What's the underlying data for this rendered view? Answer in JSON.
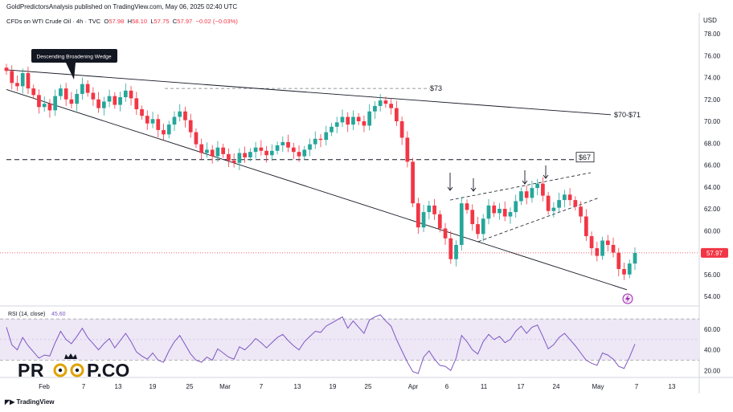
{
  "header": {
    "publisher": "GoldPredictorsAnalysis published on TradingView.com, May 06, 2025 02:40 UTC",
    "symbol": "CFDs on WTI Crude Oil · 4h · TVC",
    "open_label": "O",
    "open": "57.98",
    "high_label": "H",
    "high": "58.10",
    "low_label": "L",
    "low": "57.75",
    "close_label": "C",
    "close": "57.97",
    "change": "−0.02 (−0.03%)"
  },
  "currency": "USD",
  "watermark": "PR  P.CO",
  "tv_logo": "TradingView",
  "annotations": {
    "pattern_label": "Descending Broadening Wedge",
    "level_73": "$73",
    "level_70_71": "$70-$71",
    "level_67": "$67"
  },
  "colors": {
    "up": "#26a69a",
    "down": "#f23645",
    "rsi": "#7e57c2",
    "rsi_band": "#ede7f6",
    "price_tag": "#f23645"
  },
  "chart_data": [
    {
      "type": "candlestick",
      "title": "CFDs on WTI Crude Oil · 4h · TVC",
      "ylabel": "USD",
      "ylim": [
        53,
        79
      ],
      "y_ticks": [
        "78.00",
        "76.00",
        "74.00",
        "72.00",
        "70.00",
        "68.00",
        "66.00",
        "64.00",
        "62.00",
        "60.00",
        "58.00",
        "56.00",
        "54.00"
      ],
      "x_ticks": [
        "Feb",
        "7",
        "13",
        "19",
        "25",
        "Mar",
        "7",
        "13",
        "19",
        "25",
        "Apr",
        "6",
        "11",
        "17",
        "24",
        "May",
        "7",
        "13"
      ],
      "last_price": 57.97,
      "closes": [
        74.6,
        73.5,
        73.2,
        74.4,
        73.0,
        72.4,
        71.3,
        71.6,
        71.0,
        72.3,
        73.0,
        72.0,
        71.6,
        72.5,
        73.4,
        72.6,
        72.0,
        71.2,
        71.8,
        72.3,
        71.5,
        72.2,
        72.8,
        72.1,
        71.1,
        70.5,
        69.8,
        70.2,
        69.2,
        68.8,
        69.7,
        70.4,
        70.9,
        70.1,
        69.0,
        67.9,
        67.1,
        67.4,
        66.8,
        67.6,
        67.0,
        66.4,
        66.2,
        67.1,
        66.7,
        67.2,
        67.6,
        67.3,
        66.9,
        67.3,
        67.8,
        68.1,
        67.6,
        67.2,
        66.8,
        67.4,
        67.9,
        68.4,
        68.3,
        69.0,
        69.5,
        69.9,
        70.4,
        69.7,
        70.4,
        70.0,
        69.6,
        70.9,
        71.4,
        71.9,
        71.6,
        71.2,
        70.0,
        68.5,
        66.3,
        62.5,
        60.3,
        61.7,
        62.3,
        61.5,
        60.2,
        59.3,
        57.4,
        58.7,
        62.5,
        61.9,
        60.6,
        59.7,
        61.1,
        62.3,
        61.6,
        62.0,
        61.3,
        61.7,
        62.7,
        63.6,
        63.0,
        63.9,
        64.3,
        63.2,
        61.8,
        62.1,
        62.8,
        63.3,
        62.8,
        62.2,
        61.3,
        59.5,
        58.4,
        57.7,
        59.1,
        58.7,
        58.0,
        56.5,
        56.0,
        57.0,
        57.97
      ],
      "levels": [
        {
          "label": "$73",
          "value": 73.0
        },
        {
          "label": "$67",
          "value": 66.5
        },
        {
          "label": "$70-$71",
          "value": 70.6
        }
      ]
    },
    {
      "type": "line",
      "title": "RSI (14, close)",
      "value_label": "45.60",
      "y_ticks": [
        "60.00",
        "40.00",
        "20.00"
      ],
      "band": [
        30,
        70
      ],
      "ylim": [
        12,
        76
      ],
      "values": [
        62,
        45,
        40,
        52,
        44,
        38,
        32,
        35,
        34,
        47,
        58,
        50,
        46,
        53,
        61,
        52,
        46,
        40,
        46,
        51,
        42,
        49,
        56,
        48,
        38,
        34,
        31,
        37,
        30,
        28,
        39,
        48,
        54,
        45,
        36,
        30,
        28,
        33,
        30,
        41,
        37,
        33,
        31,
        43,
        40,
        45,
        51,
        47,
        42,
        47,
        52,
        55,
        49,
        44,
        40,
        48,
        53,
        58,
        57,
        63,
        66,
        69,
        72,
        61,
        68,
        62,
        56,
        69,
        72,
        74,
        68,
        63,
        50,
        39,
        28,
        19,
        17,
        33,
        39,
        31,
        25,
        24,
        20,
        32,
        54,
        48,
        40,
        36,
        48,
        55,
        50,
        53,
        47,
        50,
        58,
        63,
        56,
        62,
        64,
        53,
        41,
        45,
        52,
        56,
        50,
        44,
        37,
        30,
        27,
        25,
        37,
        35,
        31,
        24,
        22,
        33,
        45.6
      ]
    }
  ]
}
